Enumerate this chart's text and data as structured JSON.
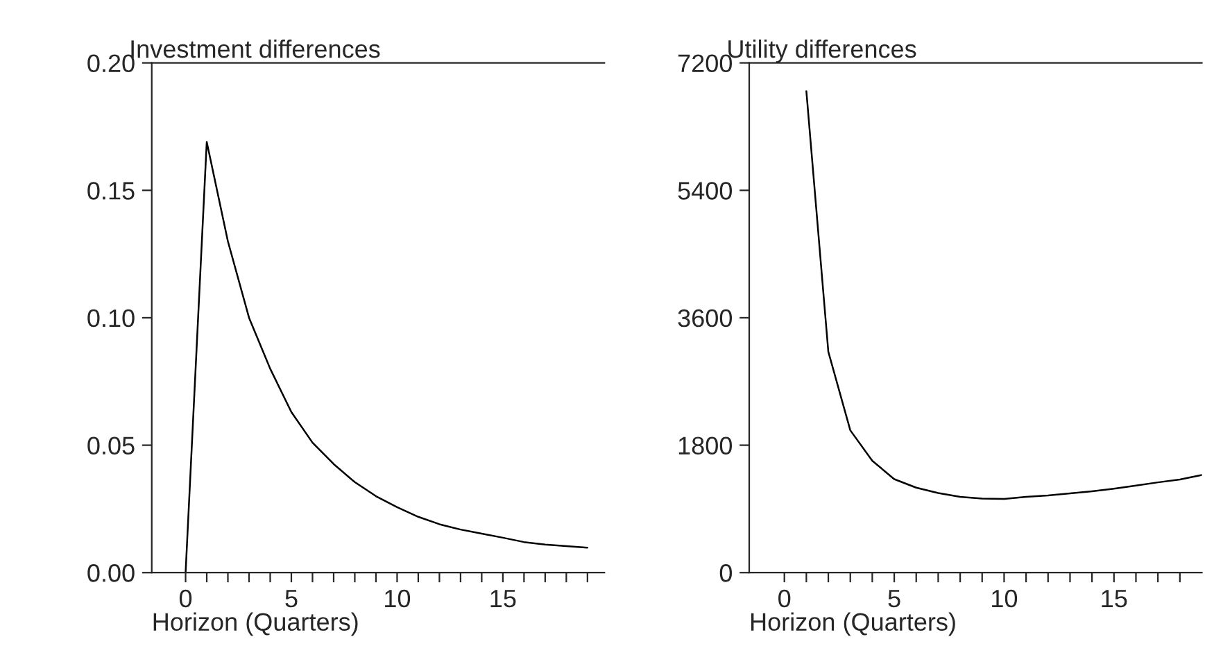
{
  "chart_data": [
    {
      "type": "line",
      "title": "Investment differences",
      "xlabel": "Horizon (Quarters)",
      "x": [
        0,
        1,
        2,
        3,
        4,
        5,
        6,
        7,
        8,
        9,
        10,
        11,
        12,
        13,
        14,
        15,
        16,
        17,
        18,
        19
      ],
      "series": [
        {
          "color": "#000000",
          "values": [
            0,
            0.169,
            0.13,
            0.1,
            0.08,
            0.063,
            0.051,
            0.0426,
            0.0355,
            0.03,
            0.0257,
            0.0219,
            0.019,
            0.0169,
            0.0153,
            0.0137,
            0.012,
            0.011,
            0.0104,
            0.0098
          ]
        }
      ],
      "xlim": [
        -1.6,
        19.8
      ],
      "xticks": [
        0,
        {
          "value": 1,
          "label": null
        },
        {
          "value": 2,
          "label": null
        },
        {
          "value": 3,
          "label": null
        },
        {
          "value": 4,
          "label": null
        },
        5,
        {
          "value": 6,
          "label": null
        },
        {
          "value": 7,
          "label": null
        },
        {
          "value": 8,
          "label": null
        },
        {
          "value": 9,
          "label": null
        },
        10,
        {
          "value": 11,
          "label": null
        },
        {
          "value": 12,
          "label": null
        },
        {
          "value": 13,
          "label": null
        },
        {
          "value": 14,
          "label": null
        },
        15,
        {
          "value": 16,
          "label": null
        },
        {
          "value": 17,
          "label": null
        },
        {
          "value": 18,
          "label": null
        },
        {
          "value": 19,
          "label": null
        }
      ],
      "ylim": [
        0,
        0.2
      ],
      "yticks": [
        {
          "value": 0,
          "label": "0.00"
        },
        {
          "value": 0.05,
          "label": "0.05"
        },
        {
          "value": 0.1,
          "label": "0.10"
        },
        {
          "value": 0.15,
          "label": "0.15"
        },
        {
          "value": 0.2,
          "label": "0.20"
        }
      ],
      "grid": false,
      "legend": false,
      "line_style": "solid"
    },
    {
      "type": "line",
      "title": "Utility differences",
      "xlabel": "Horizon (Quarters)",
      "x": [
        1,
        2,
        3,
        4,
        5,
        6,
        7,
        8,
        9,
        10,
        11,
        12,
        13,
        14,
        15,
        16,
        17,
        18,
        19
      ],
      "series": [
        {
          "color": "#000000",
          "values": [
            6800,
            3120,
            2010,
            1580,
            1320,
            1200,
            1125,
            1070,
            1045,
            1040,
            1070,
            1090,
            1120,
            1150,
            1185,
            1230,
            1275,
            1315,
            1380
          ]
        }
      ],
      "xlim": [
        -1.6,
        19
      ],
      "xticks": [
        0,
        {
          "value": 1,
          "label": null
        },
        {
          "value": 2,
          "label": null
        },
        {
          "value": 3,
          "label": null
        },
        {
          "value": 4,
          "label": null
        },
        5,
        {
          "value": 6,
          "label": null
        },
        {
          "value": 7,
          "label": null
        },
        {
          "value": 8,
          "label": null
        },
        {
          "value": 9,
          "label": null
        },
        10,
        {
          "value": 11,
          "label": null
        },
        {
          "value": 12,
          "label": null
        },
        {
          "value": 13,
          "label": null
        },
        {
          "value": 14,
          "label": null
        },
        15,
        {
          "value": 16,
          "label": null
        },
        {
          "value": 17,
          "label": null
        },
        {
          "value": 18,
          "label": null
        }
      ],
      "ylim": [
        0,
        7200
      ],
      "yticks": [
        0,
        1800,
        3600,
        5400,
        7200
      ],
      "grid": false,
      "legend": false,
      "line_style": "solid"
    }
  ]
}
